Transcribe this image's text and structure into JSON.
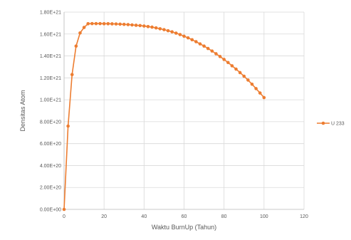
{
  "chart_data": {
    "type": "line",
    "title": "",
    "xlabel": "Waktu BurnUp (Tahun)",
    "ylabel": "Densitas Atom",
    "xlim": [
      0,
      120
    ],
    "ylim": [
      0,
      1.8e+21
    ],
    "x_ticks": [
      "0",
      "20",
      "40",
      "60",
      "80",
      "100",
      "120"
    ],
    "y_ticks": [
      "0.00E+00",
      "2.00E+20",
      "4.00E+20",
      "6.00E+20",
      "8.00E+20",
      "1.00E+21",
      "1.20E+21",
      "1.40E+21",
      "1.60E+21",
      "1.80E+21"
    ],
    "grid": true,
    "legend": "right",
    "series": [
      {
        "name": "U 233",
        "color": "#ed7d31",
        "x": [
          0,
          2,
          4,
          6,
          8,
          10,
          12,
          14,
          16,
          18,
          20,
          22,
          24,
          26,
          28,
          30,
          32,
          34,
          36,
          38,
          40,
          42,
          44,
          46,
          48,
          50,
          52,
          54,
          56,
          58,
          60,
          62,
          64,
          66,
          68,
          70,
          72,
          74,
          76,
          78,
          80,
          82,
          84,
          86,
          88,
          90,
          92,
          94,
          96,
          98,
          100
        ],
        "values": [
          0,
          7.6e+20,
          1.23e+21,
          1.49e+21,
          1.61e+21,
          1.66e+21,
          1.694e+21,
          1.695e+21,
          1.695e+21,
          1.695e+21,
          1.694e+21,
          1.694e+21,
          1.693e+21,
          1.692e+21,
          1.69e+21,
          1.688e+21,
          1.686e+21,
          1.683e+21,
          1.68e+21,
          1.677e+21,
          1.673e+21,
          1.668e+21,
          1.663e+21,
          1.656e+21,
          1.648e+21,
          1.64e+21,
          1.63e+21,
          1.62e+21,
          1.608e+21,
          1.595e+21,
          1.58e+21,
          1.565e+21,
          1.548e+21,
          1.53e+21,
          1.51e+21,
          1.49e+21,
          1.468e+21,
          1.445e+21,
          1.42e+21,
          1.395e+21,
          1.368e+21,
          1.34e+21,
          1.31e+21,
          1.28e+21,
          1.248e+21,
          1.215e+21,
          1.18e+21,
          1.142e+21,
          1.102e+21,
          1.062e+21,
          1.02e+21
        ]
      }
    ]
  }
}
